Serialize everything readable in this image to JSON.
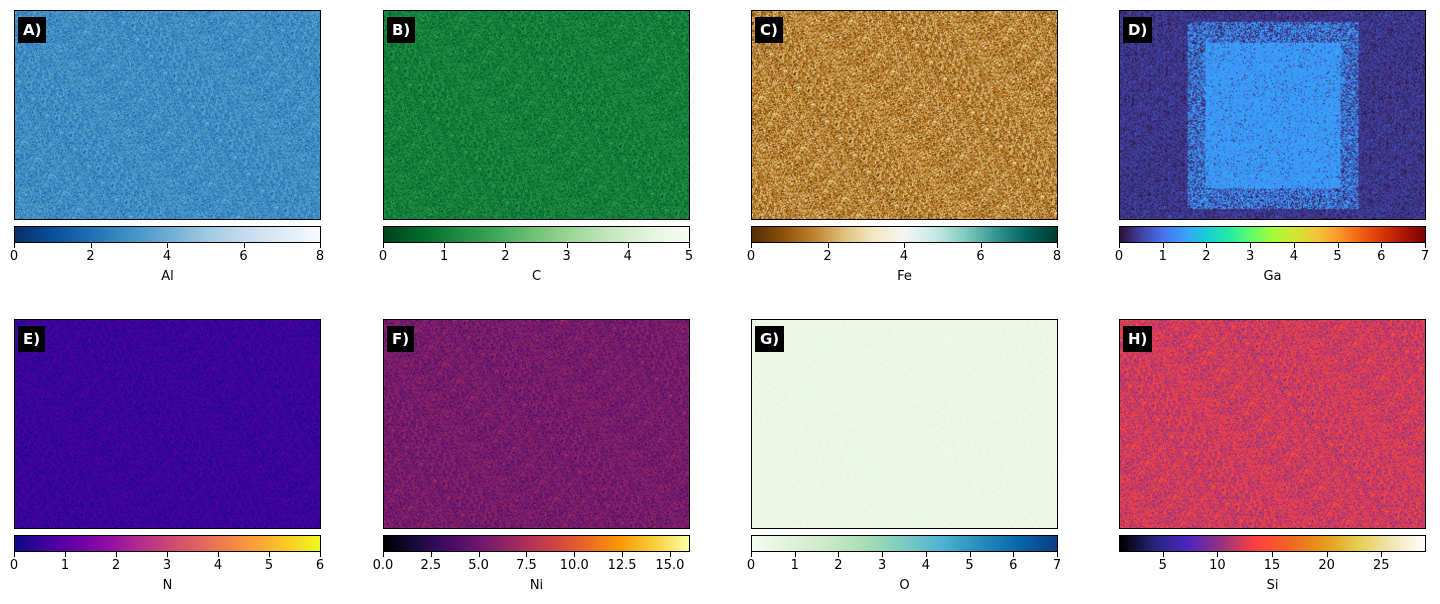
{
  "chart_data": [
    {
      "type": "heatmap",
      "panel_label": "A)",
      "element": "Al",
      "colormap": "Blues_r",
      "color_stops": [
        "#08306b",
        "#08519c",
        "#2171b5",
        "#4292c6",
        "#6baed6",
        "#9ecae1",
        "#c6dbef",
        "#deebf7",
        "#f7fbff"
      ],
      "cbar_range": [
        0,
        8
      ],
      "cbar_ticks": [
        "0",
        "2",
        "4",
        "6",
        "8"
      ],
      "cbar_tick_values": [
        0,
        2,
        4,
        6,
        8
      ],
      "pattern": "uniform",
      "mean_level": 0.36,
      "spread": 0.16
    },
    {
      "type": "heatmap",
      "panel_label": "B)",
      "element": "C",
      "colormap": "Greens_r",
      "color_stops": [
        "#00441b",
        "#006d2c",
        "#238b45",
        "#41ab5d",
        "#74c476",
        "#a1d99b",
        "#c7e9c0",
        "#e5f5e0",
        "#f7fcf5"
      ],
      "cbar_range": [
        0,
        5
      ],
      "cbar_ticks": [
        "0",
        "1",
        "2",
        "3",
        "4",
        "5"
      ],
      "cbar_tick_values": [
        0,
        1,
        2,
        3,
        4,
        5
      ],
      "pattern": "uniform",
      "mean_level": 0.2,
      "spread": 0.14
    },
    {
      "type": "heatmap",
      "panel_label": "C)",
      "element": "Fe",
      "colormap": "BrBG",
      "color_stops": [
        "#543005",
        "#8c510a",
        "#bf812d",
        "#dfc27d",
        "#f6e8c3",
        "#f5f5f5",
        "#c7eae5",
        "#80cdc1",
        "#35978f",
        "#01665e",
        "#003c30"
      ],
      "cbar_range": [
        0,
        8
      ],
      "cbar_ticks": [
        "0",
        "2",
        "4",
        "6",
        "8"
      ],
      "cbar_tick_values": [
        0,
        2,
        4,
        6,
        8
      ],
      "pattern": "uniform",
      "mean_level": 0.2,
      "spread": 0.18
    },
    {
      "type": "heatmap",
      "panel_label": "D)",
      "element": "Ga",
      "colormap": "turbo",
      "color_stops": [
        "#30123b",
        "#4145ab",
        "#4675ed",
        "#39a2fc",
        "#1bcfd4",
        "#24eca6",
        "#61fc6c",
        "#a4fc3b",
        "#d1e834",
        "#f3c63a",
        "#fe9b2d",
        "#f36315",
        "#d93806",
        "#b11901",
        "#7a0402"
      ],
      "cbar_range": [
        0,
        7
      ],
      "cbar_ticks": [
        "0",
        "1",
        "2",
        "3",
        "4",
        "5",
        "6",
        "7"
      ],
      "cbar_tick_values": [
        0,
        1,
        2,
        3,
        4,
        5,
        6,
        7
      ],
      "pattern": "central-block",
      "mean_level": 0.05,
      "block_level": 0.2,
      "spread": 0.05
    },
    {
      "type": "heatmap",
      "panel_label": "E)",
      "element": "N",
      "colormap": "plasma",
      "color_stops": [
        "#0d0887",
        "#41049d",
        "#6a00a8",
        "#8f0da4",
        "#b12a90",
        "#cc4778",
        "#e16462",
        "#f2844b",
        "#fca636",
        "#fcce25",
        "#f0f921"
      ],
      "cbar_range": [
        0,
        6
      ],
      "cbar_ticks": [
        "0",
        "1",
        "2",
        "3",
        "4",
        "5",
        "6"
      ],
      "cbar_tick_values": [
        0,
        1,
        2,
        3,
        4,
        5,
        6
      ],
      "pattern": "uniform",
      "mean_level": 0.09,
      "spread": 0.08
    },
    {
      "type": "heatmap",
      "panel_label": "F)",
      "element": "Ni",
      "colormap": "inferno",
      "color_stops": [
        "#000004",
        "#1b0c41",
        "#4a0c6b",
        "#781c6d",
        "#a52c60",
        "#cf4446",
        "#ed6925",
        "#fb9b06",
        "#f7d13d",
        "#fcffa4"
      ],
      "cbar_range": [
        0,
        16
      ],
      "cbar_ticks": [
        "0.0",
        "2.5",
        "5.0",
        "7.5",
        "10.0",
        "12.5",
        "15.0"
      ],
      "cbar_tick_values": [
        0,
        2.5,
        5,
        7.5,
        10,
        12.5,
        15
      ],
      "pattern": "uniform",
      "mean_level": 0.33,
      "spread": 0.13
    },
    {
      "type": "heatmap",
      "panel_label": "G)",
      "element": "O",
      "colormap": "GnBu",
      "color_stops": [
        "#f7fcf0",
        "#e0f3db",
        "#ccebc5",
        "#a8ddb5",
        "#7bccc4",
        "#4eb3d3",
        "#2b8cbe",
        "#0868ac",
        "#084081"
      ],
      "cbar_range": [
        0,
        7
      ],
      "cbar_ticks": [
        "0",
        "1",
        "2",
        "3",
        "4",
        "5",
        "6",
        "7"
      ],
      "cbar_tick_values": [
        0,
        1,
        2,
        3,
        4,
        5,
        6,
        7
      ],
      "pattern": "uniform",
      "mean_level": 0.06,
      "spread": 0.04
    },
    {
      "type": "heatmap",
      "panel_label": "H)",
      "element": "Si",
      "colormap": "CMRmap",
      "color_stops": [
        "#000000",
        "#262680",
        "#4d26bf",
        "#993380",
        "#ff4040",
        "#f26626",
        "#e6991a",
        "#e6cc4d",
        "#f2e6b3",
        "#ffffff"
      ],
      "cbar_range": [
        1,
        29
      ],
      "cbar_ticks": [
        "5",
        "10",
        "15",
        "20",
        "25"
      ],
      "cbar_tick_values": [
        5,
        10,
        15,
        20,
        25
      ],
      "pattern": "uniform",
      "mean_level": 0.4,
      "spread": 0.12
    }
  ]
}
